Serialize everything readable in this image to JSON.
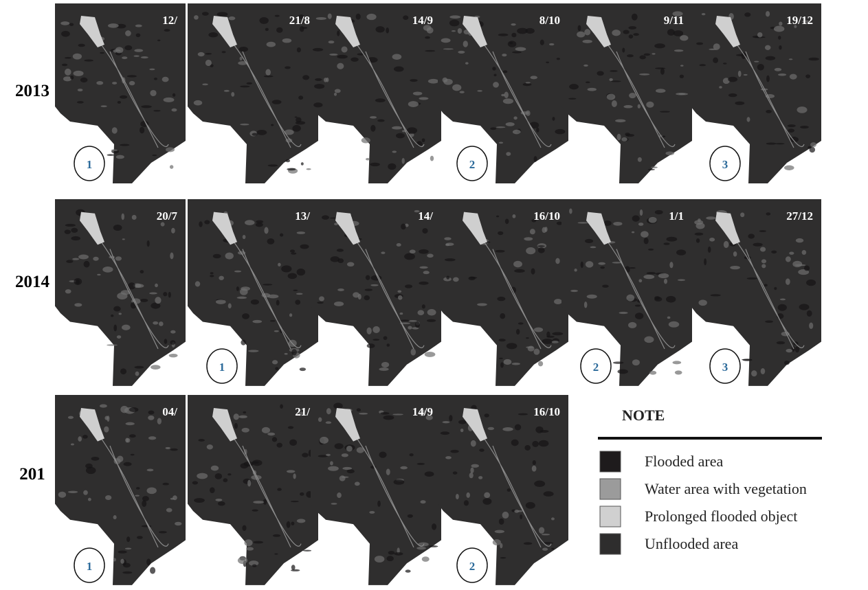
{
  "rows": [
    {
      "year": "2013",
      "panels": [
        {
          "date": "12/",
          "mark": "1"
        },
        {
          "date": "21/8"
        },
        {
          "date": "14/9"
        },
        {
          "date": "8/10",
          "mark": "2"
        },
        {
          "date": "9/11"
        },
        {
          "date": "19/12",
          "mark": "3"
        }
      ]
    },
    {
      "year": "2014",
      "panels": [
        {
          "date": "20/7"
        },
        {
          "date": "13/",
          "mark": "1"
        },
        {
          "date": "14/"
        },
        {
          "date": "16/10"
        },
        {
          "date": "1/1",
          "mark": "2"
        },
        {
          "date": "27/12",
          "mark": "3"
        }
      ]
    },
    {
      "year": "201",
      "panels": [
        {
          "date": "04/",
          "mark": "1"
        },
        {
          "date": "21/"
        },
        {
          "date": "14/9"
        },
        {
          "date": "16/10",
          "mark": "2"
        }
      ]
    }
  ],
  "legend": {
    "title": "NOTE",
    "items": [
      {
        "label": "Flooded area",
        "color": "#1e1b1c"
      },
      {
        "label": "Water area with vegetation",
        "color": "#9b9b9b"
      },
      {
        "label": "Prolonged flooded object",
        "color": "#d0d0d0"
      },
      {
        "label": "Unflooded area",
        "color": "#2e2d2d"
      }
    ]
  }
}
